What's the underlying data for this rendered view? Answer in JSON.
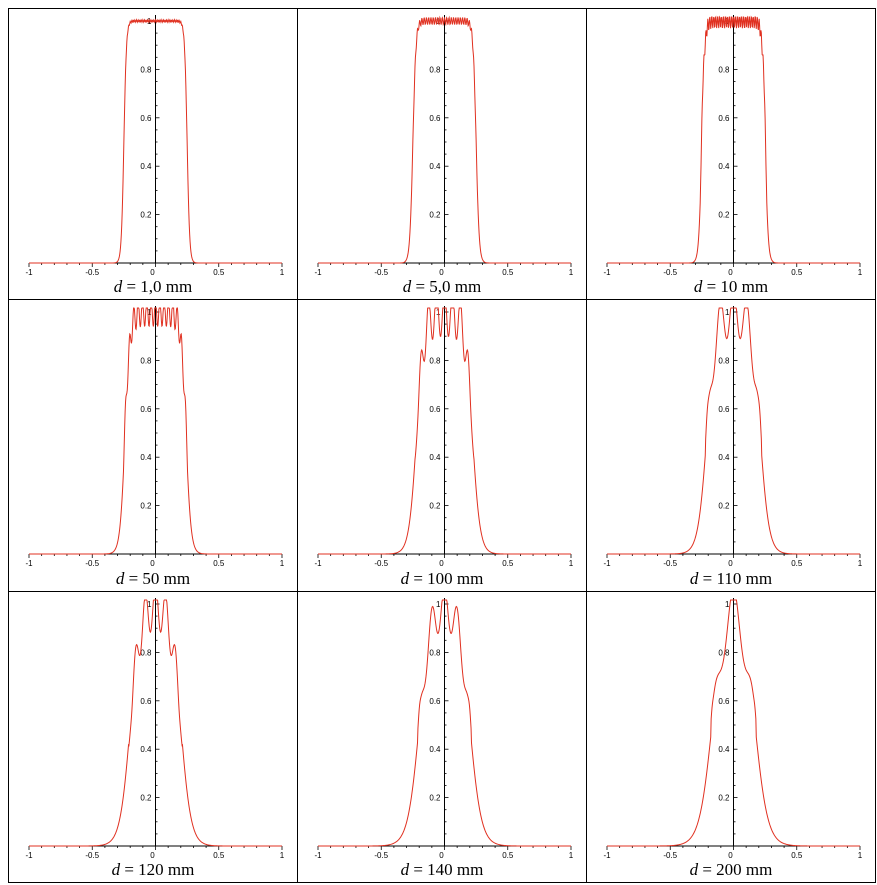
{
  "chart_data": [
    {
      "type": "line",
      "caption_var": "d",
      "caption_rest": " = 1,0 mm",
      "d_mm": 1.0,
      "xlim": [
        -1,
        1
      ],
      "ylim": [
        0,
        1
      ],
      "xticks": [
        "-1",
        "-0.5",
        "0",
        "0.5",
        "1"
      ],
      "yticks": [
        "0.2",
        "0.4",
        "0.6",
        "0.8",
        "1"
      ],
      "line_color": "#e03020",
      "profile": {
        "half_width": 0.25,
        "edge_width": 0.01,
        "ripple_amp": 0.005,
        "ripple_cycles": 20
      }
    },
    {
      "type": "line",
      "caption_var": "d",
      "caption_rest": " = 5,0 mm",
      "d_mm": 5.0,
      "xlim": [
        -1,
        1
      ],
      "ylim": [
        0,
        1
      ],
      "xticks": [
        "-1",
        "-0.5",
        "0",
        "0.5",
        "1"
      ],
      "yticks": [
        "0.2",
        "0.4",
        "0.6",
        "0.8",
        "1"
      ],
      "line_color": "#e03020",
      "profile": {
        "half_width": 0.25,
        "edge_width": 0.012,
        "ripple_amp": 0.015,
        "ripple_cycles": 14
      }
    },
    {
      "type": "line",
      "caption_var": "d",
      "caption_rest": " = 10 mm",
      "d_mm": 10,
      "xlim": [
        -1,
        1
      ],
      "ylim": [
        0,
        1
      ],
      "xticks": [
        "-1",
        "-0.5",
        "0",
        "0.5",
        "1"
      ],
      "yticks": [
        "0.2",
        "0.4",
        "0.6",
        "0.8",
        "1"
      ],
      "line_color": "#e03020",
      "profile": {
        "half_width": 0.25,
        "edge_width": 0.012,
        "ripple_amp": 0.03,
        "ripple_cycles": 16,
        "edge_spike": 0.16
      }
    },
    {
      "type": "line",
      "caption_var": "d",
      "caption_rest": " = 50 mm",
      "d_mm": 50,
      "xlim": [
        -1,
        1
      ],
      "ylim": [
        0,
        1
      ],
      "xticks": [
        "-1",
        "-0.5",
        "0",
        "0.5",
        "1"
      ],
      "yticks": [
        "0.2",
        "0.4",
        "0.6",
        "0.8",
        "1"
      ],
      "line_color": "#e03020",
      "profile": {
        "half_width": 0.24,
        "edge_width": 0.02,
        "ripple_amp": 0.06,
        "ripple_cycles": 7,
        "edge_spike": 0.12
      }
    },
    {
      "type": "line",
      "caption_var": "d",
      "caption_rest": " = 100 mm",
      "d_mm": 100,
      "xlim": [
        -1,
        1
      ],
      "ylim": [
        0,
        1
      ],
      "xticks": [
        "-1",
        "-0.5",
        "0",
        "0.5",
        "1"
      ],
      "yticks": [
        "0.2",
        "0.4",
        "0.6",
        "0.8",
        "1"
      ],
      "line_color": "#e03020",
      "profile": {
        "half_width": 0.22,
        "edge_width": 0.03,
        "ripple_amp": 0.1,
        "ripple_cycles": 3.5,
        "edge_spike": 0.05
      }
    },
    {
      "type": "line",
      "caption_var": "d",
      "caption_rest": " = 110 mm",
      "d_mm": 110,
      "xlim": [
        -1,
        1
      ],
      "ylim": [
        0,
        1
      ],
      "xticks": [
        "-1",
        "-0.5",
        "0",
        "0.5",
        "1"
      ],
      "yticks": [
        "0.2",
        "0.4",
        "0.6",
        "0.8",
        "1"
      ],
      "line_color": "#e03020",
      "profile": {
        "half_width": 0.21,
        "edge_width": 0.035,
        "ripple_amp": 0.1,
        "ripple_cycles": 2,
        "edge_spike": 0.05
      }
    },
    {
      "type": "line",
      "caption_var": "d",
      "caption_rest": " = 120 mm",
      "d_mm": 120,
      "xlim": [
        -1,
        1
      ],
      "ylim": [
        0,
        1
      ],
      "xticks": [
        "-1",
        "-0.5",
        "0",
        "0.5",
        "1"
      ],
      "yticks": [
        "0.2",
        "0.4",
        "0.6",
        "0.8",
        "1"
      ],
      "line_color": "#e03020",
      "profile": {
        "half_width": 0.2,
        "edge_width": 0.04,
        "ripple_amp": 0.1,
        "ripple_cycles": 2.5,
        "edge_spike": 0.04
      }
    },
    {
      "type": "line",
      "caption_var": "d",
      "caption_rest": " = 140 mm",
      "d_mm": 140,
      "xlim": [
        -1,
        1
      ],
      "ylim": [
        0,
        1
      ],
      "xticks": [
        "-1",
        "-0.5",
        "0",
        "0.5",
        "1"
      ],
      "yticks": [
        "0.2",
        "0.4",
        "0.6",
        "0.8",
        "1"
      ],
      "line_color": "#e03020",
      "profile": {
        "half_width": 0.2,
        "edge_width": 0.045,
        "ripple_amp": 0.09,
        "ripple_cycles": 2,
        "edge_spike": 0.04
      }
    },
    {
      "type": "line",
      "caption_var": "d",
      "caption_rest": " = 200 mm",
      "d_mm": 200,
      "xlim": [
        -1,
        1
      ],
      "ylim": [
        0,
        1
      ],
      "xticks": [
        "-1",
        "-0.5",
        "0",
        "0.5",
        "1"
      ],
      "yticks": [
        "0.2",
        "0.4",
        "0.6",
        "0.8",
        "1"
      ],
      "line_color": "#e03020",
      "profile": {
        "half_width": 0.17,
        "edge_width": 0.05,
        "ripple_amp": 0.11,
        "ripple_cycles": 1,
        "edge_spike": 0.03
      }
    }
  ],
  "axis_color": "#000000"
}
